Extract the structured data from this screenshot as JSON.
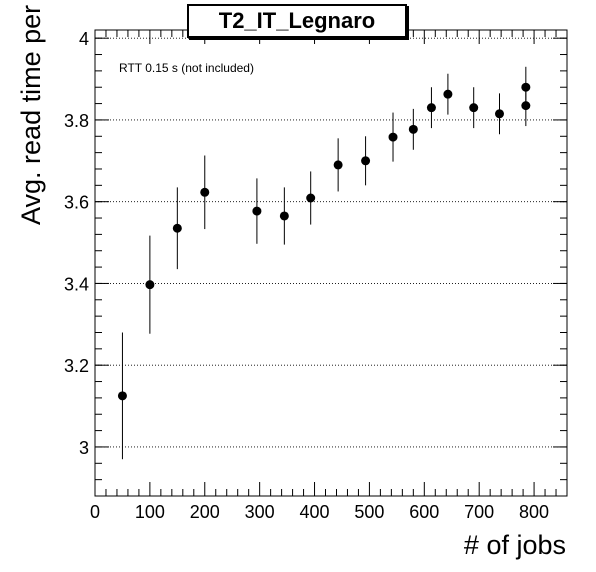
{
  "chart_data": {
    "type": "scatter",
    "title": "T2_IT_Legnaro",
    "xlabel": "# of jobs",
    "ylabel": "Avg. read time per block [s]",
    "annotation": "RTT 0.15 s (not included)",
    "xlim": [
      0,
      860
    ],
    "ylim": [
      2.88,
      4.02
    ],
    "x_ticks": [
      0,
      100,
      200,
      300,
      400,
      500,
      600,
      700,
      800
    ],
    "y_ticks": [
      3,
      3.2,
      3.4,
      3.6,
      3.8,
      4
    ],
    "y_tick_labels": [
      "3",
      "3.2",
      "3.4",
      "3.6",
      "3.8",
      "4"
    ],
    "grid": "horizontal-dotted",
    "points": [
      {
        "x": 50,
        "y": 3.125,
        "err": 0.155
      },
      {
        "x": 100,
        "y": 3.397,
        "err": 0.12
      },
      {
        "x": 150,
        "y": 3.535,
        "err": 0.1
      },
      {
        "x": 200,
        "y": 3.623,
        "err": 0.09
      },
      {
        "x": 295,
        "y": 3.577,
        "err": 0.08
      },
      {
        "x": 345,
        "y": 3.565,
        "err": 0.07
      },
      {
        "x": 393,
        "y": 3.609,
        "err": 0.065
      },
      {
        "x": 443,
        "y": 3.69,
        "err": 0.065
      },
      {
        "x": 493,
        "y": 3.7,
        "err": 0.06
      },
      {
        "x": 543,
        "y": 3.758,
        "err": 0.06
      },
      {
        "x": 580,
        "y": 3.777,
        "err": 0.05
      },
      {
        "x": 613,
        "y": 3.83,
        "err": 0.05
      },
      {
        "x": 643,
        "y": 3.863,
        "err": 0.05
      },
      {
        "x": 690,
        "y": 3.83,
        "err": 0.05
      },
      {
        "x": 737,
        "y": 3.815,
        "err": 0.05
      },
      {
        "x": 785,
        "y": 3.835,
        "err": 0.05
      },
      {
        "x": 785,
        "y": 3.88,
        "err": 0.05
      }
    ]
  }
}
